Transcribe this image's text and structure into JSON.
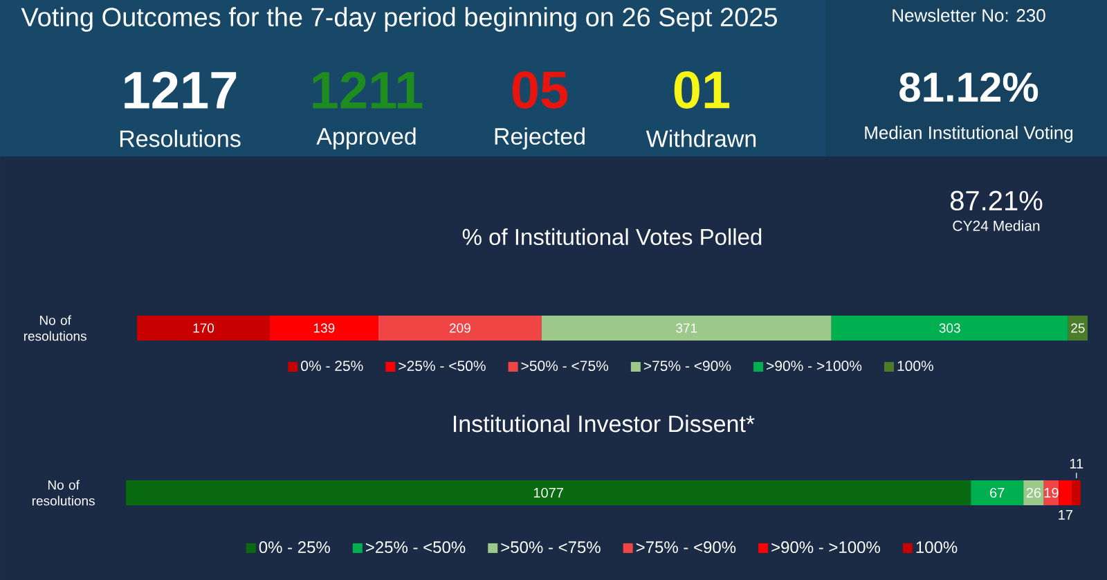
{
  "chart_data": [
    {
      "type": "other",
      "title": "Voting Outcomes for the 7-day period beginning on 26 Sept 2025",
      "annotations": [
        "Newsletter No: 230",
        "1217",
        "Resolutions",
        "1211",
        "Approved",
        "05",
        "Rejected",
        "01",
        "Withdrawn",
        "81.12%",
        "Median Institutional Voting",
        "87.21%",
        "CY24 Median"
      ]
    },
    {
      "type": "bar",
      "orientation": "horizontal",
      "stacked": true,
      "title": "% of Institutional Votes Polled",
      "categories": [
        "No of resolutions"
      ],
      "series": [
        {
          "name": "0% - 25%",
          "color": "#c80000",
          "values": [
            170
          ]
        },
        {
          "name": ">25% - <50%",
          "color": "#ff0000",
          "values": [
            139
          ]
        },
        {
          "name": ">50% - <75%",
          "color": "#ef4545",
          "values": [
            209
          ]
        },
        {
          "name": ">75% - <90%",
          "color": "#9cc98b",
          "values": [
            371
          ]
        },
        {
          "name": ">90% - >100%",
          "color": "#00b050",
          "values": [
            303
          ]
        },
        {
          "name": "100%",
          "color": "#4b7c2a",
          "values": [
            25
          ]
        }
      ],
      "data_labels": true,
      "legend": "bottom",
      "tick_labels": "y"
    },
    {
      "type": "bar",
      "orientation": "horizontal",
      "stacked": true,
      "title": "Institutional Investor Dissent*",
      "categories": [
        "No of resolutions"
      ],
      "series": [
        {
          "name": "0% - 25%",
          "color": "#0a6a12",
          "values": [
            1077
          ]
        },
        {
          "name": ">25% - <50%",
          "color": "#00b050",
          "values": [
            67
          ]
        },
        {
          "name": ">50% - <75%",
          "color": "#9cc98b",
          "values": [
            26
          ]
        },
        {
          "name": ">75% - <90%",
          "color": "#ef4545",
          "values": [
            19
          ]
        },
        {
          "name": ">90% - >100%",
          "color": "#ff0000",
          "values": [
            17
          ]
        },
        {
          "name": "100%",
          "color": "#c80000",
          "values": [
            11
          ]
        }
      ],
      "data_labels": true,
      "legend": "bottom",
      "tick_labels": "y"
    }
  ]
}
